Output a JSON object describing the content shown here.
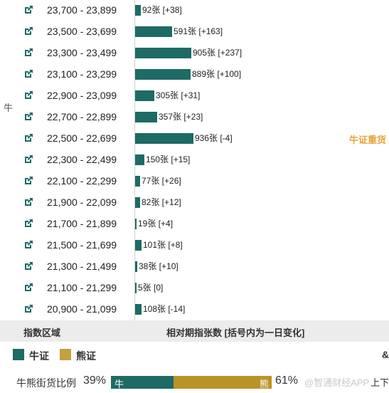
{
  "side_label": "牛",
  "heavy_label": "牛证重货",
  "rows": [
    {
      "range": "23,700 - 23,899",
      "count": 92,
      "change": "[+38]",
      "label": "92张 [+38]"
    },
    {
      "range": "23,500 - 23,699",
      "count": 591,
      "change": "[+163]",
      "label": "591张 [+163]"
    },
    {
      "range": "23,300 - 23,499",
      "count": 905,
      "change": "[+237]",
      "label": "905张 [+237]"
    },
    {
      "range": "23,100 - 23,299",
      "count": 889,
      "change": "[+100]",
      "label": "889张 [+100]"
    },
    {
      "range": "22,900 - 23,099",
      "count": 305,
      "change": "[+31]",
      "label": "305张 [+31]"
    },
    {
      "range": "22,700 - 22,899",
      "count": 357,
      "change": "[+23]",
      "label": "357张 [+23]"
    },
    {
      "range": "22,500 - 22,699",
      "count": 936,
      "change": "[-4]",
      "label": "936张 [-4]"
    },
    {
      "range": "22,300 - 22,499",
      "count": 150,
      "change": "[+15]",
      "label": "150张 [+15]"
    },
    {
      "range": "22,100 - 22,299",
      "count": 77,
      "change": "[+26]",
      "label": "77张 [+26]"
    },
    {
      "range": "21,900 - 22,099",
      "count": 82,
      "change": "[+12]",
      "label": "82张 [+12]"
    },
    {
      "range": "21,700 - 21,899",
      "count": 19,
      "change": "[+4]",
      "label": "19张 [+4]"
    },
    {
      "range": "21,500 - 21,699",
      "count": 101,
      "change": "[+8]",
      "label": "101张 [+8]"
    },
    {
      "range": "21,300 - 21,499",
      "count": 38,
      "change": "[+10]",
      "label": "38张 [+10]"
    },
    {
      "range": "21,100 - 21,299",
      "count": 5,
      "change": "[0]",
      "label": "5张 [0]"
    },
    {
      "range": "20,900 - 21,099",
      "count": 108,
      "change": "[-14]",
      "label": "108张 [-14]"
    }
  ],
  "footer": {
    "col_range": "指数区域",
    "col_count": "相对期指张数 [括号内为一日变化]"
  },
  "legend": {
    "bull": "牛证",
    "bear": "熊证",
    "edge": "&"
  },
  "ratio": {
    "title": "牛熊街货比例",
    "bull_pct": "39%",
    "bull_value": 39,
    "bull_tag": "牛",
    "bear_pct": "61%",
    "bear_value": 61,
    "bear_tag": "熊",
    "watermark": "@智通财经APP",
    "corner": "上下"
  },
  "colors": {
    "bull": "#1e6a65",
    "bear": "#b99326",
    "heavy": "#e8a33a"
  },
  "icons": {
    "row_link": "external-link-icon"
  }
}
